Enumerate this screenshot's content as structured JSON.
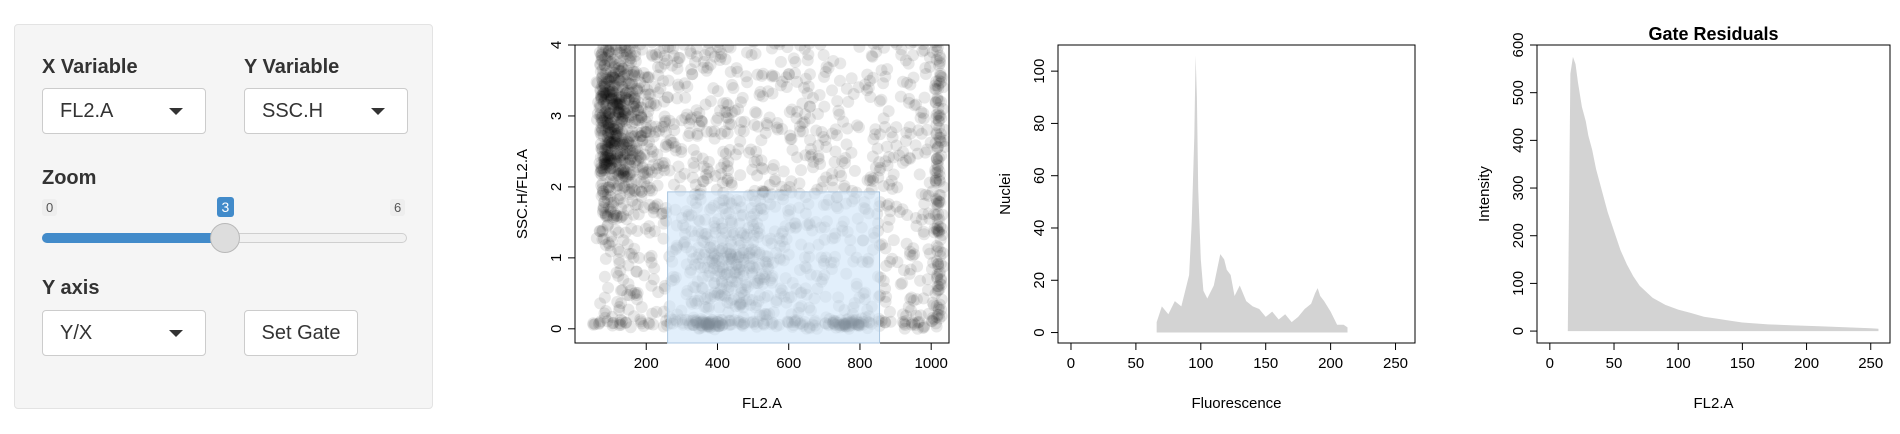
{
  "controls": {
    "x_variable": {
      "label": "X Variable",
      "value": "FL2.A"
    },
    "y_variable": {
      "label": "Y Variable",
      "value": "SSC.H"
    },
    "zoom": {
      "label": "Zoom",
      "min": "0",
      "max": "6",
      "value": "3",
      "fraction": 0.5
    },
    "y_axis": {
      "label": "Y axis",
      "value": "Y/X"
    },
    "set_gate": "Set Gate"
  },
  "colors": {
    "accent": "#428bca",
    "gate_fill": "#cfe5f8",
    "hist_fill": "#d3d3d3"
  },
  "chart_data": [
    {
      "type": "scatter",
      "title": "",
      "xlabel": "FL2.A",
      "ylabel": "SSC.H/FL2.A",
      "xlim": [
        0,
        1050
      ],
      "ylim": [
        -0.2,
        4.0
      ],
      "xticks": [
        200,
        400,
        600,
        800,
        1000
      ],
      "yticks": [
        0,
        1,
        2,
        3,
        4
      ],
      "gate": {
        "x": [
          260,
          855
        ],
        "y": [
          -0.2,
          1.93
        ]
      }
    },
    {
      "type": "area",
      "title": "",
      "xlabel": "Fluorescence",
      "ylabel": "Nuclei",
      "xlim": [
        -10,
        265
      ],
      "ylim": [
        -4,
        110
      ],
      "xticks": [
        0,
        50,
        100,
        150,
        200,
        250
      ],
      "yticks": [
        0,
        20,
        40,
        60,
        80,
        100
      ],
      "x": [
        66,
        70,
        75,
        80,
        85,
        88,
        91,
        93,
        95,
        96,
        97,
        98,
        100,
        102,
        105,
        110,
        115,
        118,
        120,
        123,
        126,
        130,
        135,
        140,
        145,
        150,
        155,
        160,
        165,
        170,
        175,
        180,
        185,
        188,
        190,
        192,
        195,
        200,
        205,
        210,
        213
      ],
      "y": [
        4,
        10,
        7,
        12,
        10,
        16,
        22,
        42,
        75,
        106,
        90,
        55,
        28,
        16,
        13,
        18,
        30,
        28,
        24,
        22,
        14,
        18,
        12,
        10,
        9,
        6,
        8,
        5,
        7,
        4,
        6,
        9,
        11,
        15,
        17,
        14,
        12,
        8,
        3,
        3,
        2
      ]
    },
    {
      "type": "area",
      "title": "Gate Residuals",
      "xlabel": "FL2.A",
      "ylabel": "Intensity",
      "xlim": [
        -10,
        265
      ],
      "ylim": [
        -25,
        600
      ],
      "xticks": [
        0,
        50,
        100,
        150,
        200,
        250
      ],
      "yticks": [
        0,
        100,
        200,
        300,
        400,
        500,
        600
      ],
      "x": [
        14,
        16,
        18,
        20,
        22,
        25,
        28,
        30,
        33,
        36,
        40,
        45,
        50,
        55,
        60,
        65,
        70,
        80,
        90,
        100,
        110,
        120,
        130,
        140,
        150,
        170,
        190,
        210,
        230,
        250,
        256
      ],
      "y": [
        0,
        540,
        575,
        560,
        520,
        470,
        440,
        410,
        380,
        340,
        300,
        250,
        210,
        170,
        140,
        115,
        95,
        70,
        55,
        45,
        38,
        30,
        26,
        22,
        18,
        14,
        12,
        10,
        8,
        6,
        5
      ]
    }
  ]
}
